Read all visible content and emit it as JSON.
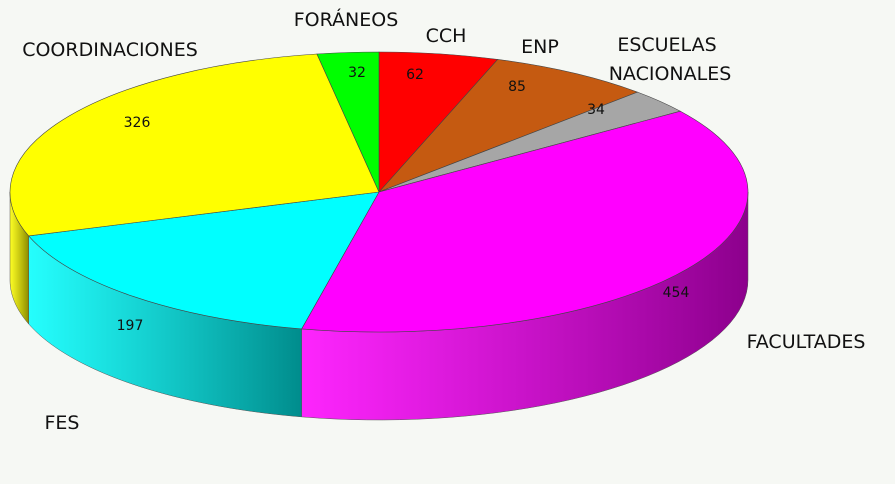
{
  "chart_data": {
    "type": "pie3d",
    "categories": [
      "CCH",
      "ENP",
      "ESCUELAS NACIONALES",
      "FACULTADES",
      "FES",
      "COORDINACIONES",
      "FORÁNEOS"
    ],
    "values": [
      62,
      85,
      34,
      454,
      197,
      326,
      32
    ],
    "colors": [
      "#ff0000",
      "#c55a11",
      "#a6a6a6",
      "#ff00ff",
      "#00ffff",
      "#ffff00",
      "#00ff00"
    ]
  }
}
